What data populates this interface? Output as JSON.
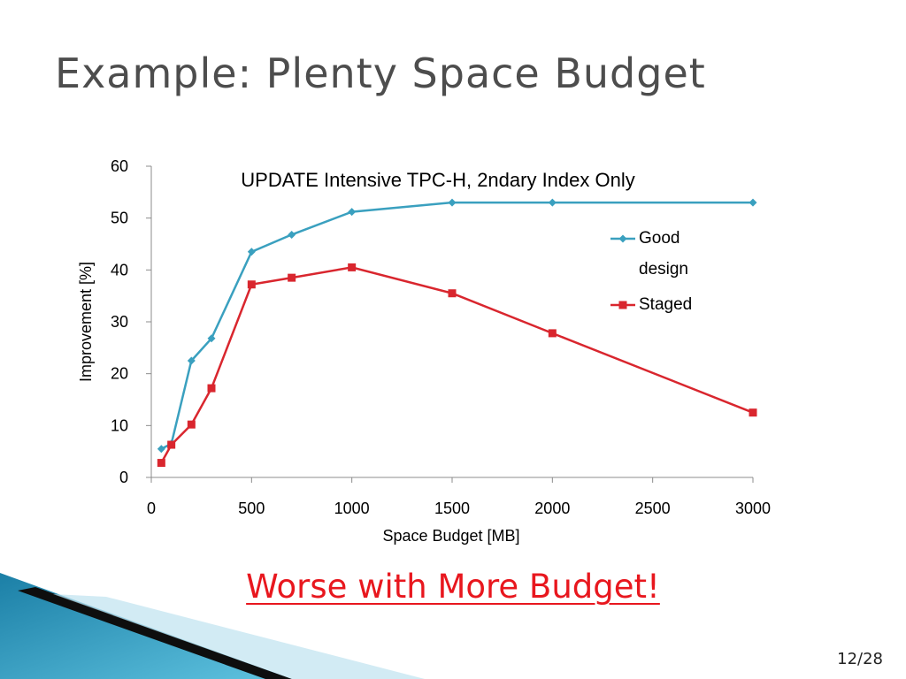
{
  "slide": {
    "title": "Example: Plenty Space Budget",
    "subtitle": "Worse with More Budget!",
    "page_number": "12/28"
  },
  "chart_data": {
    "type": "line",
    "title": "UPDATE Intensive TPC-H, 2ndary Index Only",
    "xlabel": "Space Budget [MB]",
    "ylabel": "Improvement [%]",
    "xlim": [
      0,
      3000
    ],
    "ylim": [
      0,
      60
    ],
    "xticks": [
      0,
      500,
      1000,
      1500,
      2000,
      2500,
      3000
    ],
    "yticks": [
      0,
      10,
      20,
      30,
      40,
      50,
      60
    ],
    "grid": false,
    "legend_position": "right",
    "series": [
      {
        "name": "Good design",
        "color": "#3aa0bf",
        "marker": "diamond",
        "x": [
          50,
          100,
          200,
          300,
          500,
          700,
          1000,
          1500,
          2000,
          3000
        ],
        "y": [
          5.5,
          6.5,
          22.5,
          26.8,
          43.5,
          46.8,
          51.2,
          53,
          53,
          53
        ]
      },
      {
        "name": "Staged",
        "color": "#d9262e",
        "marker": "square",
        "x": [
          50,
          100,
          200,
          300,
          500,
          700,
          1000,
          1500,
          2000,
          3000
        ],
        "y": [
          2.8,
          6.3,
          10.2,
          17.2,
          37.2,
          38.5,
          40.5,
          35.5,
          27.8,
          12.5
        ]
      }
    ]
  }
}
